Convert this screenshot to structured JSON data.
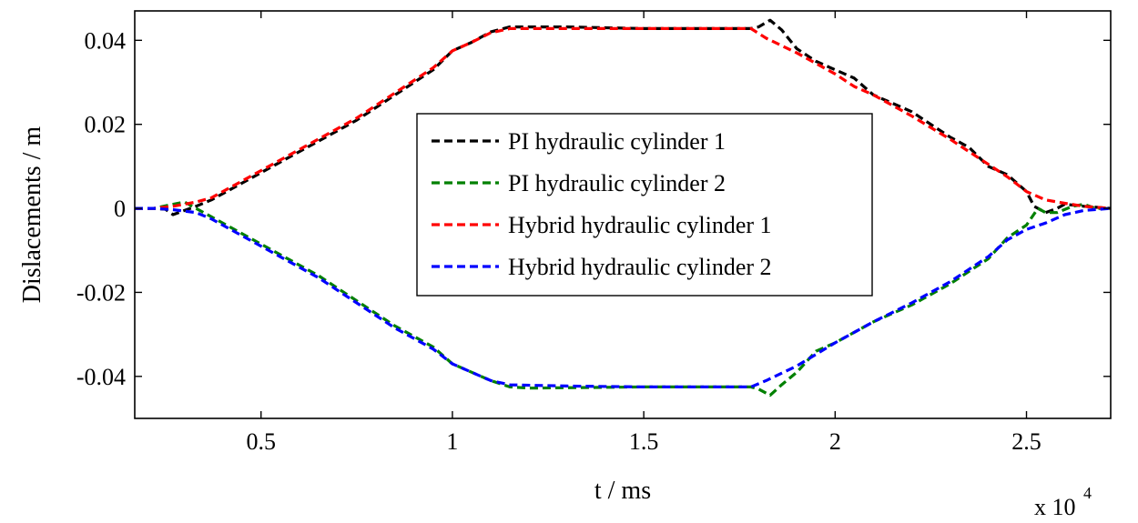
{
  "chart_data": {
    "type": "line",
    "xlabel": "t / ms",
    "ylabel": "Dislacements / m",
    "x_multiplier": {
      "base": "x 10",
      "exponent": "4"
    },
    "xlim": [
      0.17,
      2.72
    ],
    "ylim": [
      -0.05,
      0.047
    ],
    "xticks": [
      {
        "value": 0.5,
        "label": "0.5"
      },
      {
        "value": 1,
        "label": "1"
      },
      {
        "value": 1.5,
        "label": "1.5"
      },
      {
        "value": 2,
        "label": "2"
      },
      {
        "value": 2.5,
        "label": "2.5"
      }
    ],
    "yticks": [
      {
        "value": 0.04,
        "label": "0.04"
      },
      {
        "value": 0.02,
        "label": "0.02"
      },
      {
        "value": 0,
        "label": "0"
      },
      {
        "value": -0.02,
        "label": "-0.02"
      },
      {
        "value": -0.04,
        "label": "-0.04"
      }
    ],
    "grid": false,
    "legend_position": "center",
    "series": [
      {
        "name": "PI hydraulic cylinder 1",
        "color": "#000000",
        "points": [
          [
            0.17,
            0
          ],
          [
            0.22,
            0
          ],
          [
            0.25,
            -0.0002
          ],
          [
            0.27,
            -0.0015
          ],
          [
            0.3,
            -0.0005
          ],
          [
            0.33,
            0.0005
          ],
          [
            0.37,
            0.002
          ],
          [
            0.45,
            0.006
          ],
          [
            0.55,
            0.011
          ],
          [
            0.65,
            0.016
          ],
          [
            0.75,
            0.021
          ],
          [
            0.85,
            0.027
          ],
          [
            0.95,
            0.033
          ],
          [
            1.0,
            0.0375
          ],
          [
            1.05,
            0.0395
          ],
          [
            1.1,
            0.042
          ],
          [
            1.15,
            0.0432
          ],
          [
            1.3,
            0.0432
          ],
          [
            1.5,
            0.0428
          ],
          [
            1.7,
            0.0428
          ],
          [
            1.78,
            0.0428
          ],
          [
            1.8,
            0.0432
          ],
          [
            1.83,
            0.0448
          ],
          [
            1.86,
            0.0425
          ],
          [
            1.9,
            0.038
          ],
          [
            1.95,
            0.035
          ],
          [
            2.0,
            0.033
          ],
          [
            2.05,
            0.031
          ],
          [
            2.1,
            0.027
          ],
          [
            2.2,
            0.023
          ],
          [
            2.3,
            0.017
          ],
          [
            2.35,
            0.0145
          ],
          [
            2.4,
            0.01
          ],
          [
            2.45,
            0.008
          ],
          [
            2.5,
            0.004
          ],
          [
            2.52,
            0.0005
          ],
          [
            2.55,
            -0.001
          ],
          [
            2.58,
            0
          ],
          [
            2.6,
            0.001
          ],
          [
            2.65,
            0.0005
          ],
          [
            2.72,
            0
          ]
        ]
      },
      {
        "name": "PI hydraulic cylinder 2",
        "color": "#008000",
        "points": [
          [
            0.17,
            0
          ],
          [
            0.22,
            0
          ],
          [
            0.26,
            0.0008
          ],
          [
            0.3,
            0.0015
          ],
          [
            0.33,
            0
          ],
          [
            0.37,
            -0.002
          ],
          [
            0.45,
            -0.006
          ],
          [
            0.55,
            -0.011
          ],
          [
            0.65,
            -0.016
          ],
          [
            0.75,
            -0.022
          ],
          [
            0.85,
            -0.028
          ],
          [
            0.95,
            -0.033
          ],
          [
            1.0,
            -0.037
          ],
          [
            1.05,
            -0.039
          ],
          [
            1.1,
            -0.041
          ],
          [
            1.15,
            -0.0425
          ],
          [
            1.2,
            -0.0428
          ],
          [
            1.5,
            -0.0425
          ],
          [
            1.7,
            -0.0425
          ],
          [
            1.78,
            -0.0425
          ],
          [
            1.8,
            -0.043
          ],
          [
            1.83,
            -0.0445
          ],
          [
            1.86,
            -0.042
          ],
          [
            1.9,
            -0.039
          ],
          [
            1.95,
            -0.034
          ],
          [
            2.0,
            -0.032
          ],
          [
            2.1,
            -0.027
          ],
          [
            2.2,
            -0.023
          ],
          [
            2.3,
            -0.018
          ],
          [
            2.4,
            -0.012
          ],
          [
            2.45,
            -0.007
          ],
          [
            2.5,
            -0.004
          ],
          [
            2.53,
            0
          ],
          [
            2.55,
            -0.001
          ],
          [
            2.58,
            -0.001
          ],
          [
            2.62,
            0.0005
          ],
          [
            2.65,
            0.001
          ],
          [
            2.68,
            0
          ],
          [
            2.72,
            0
          ]
        ]
      },
      {
        "name": "Hybrid hydraulic cylinder 1",
        "color": "#ff0000",
        "points": [
          [
            0.17,
            0
          ],
          [
            0.22,
            0
          ],
          [
            0.27,
            0.0005
          ],
          [
            0.33,
            0.0015
          ],
          [
            0.37,
            0.0025
          ],
          [
            0.45,
            0.0065
          ],
          [
            0.55,
            0.0115
          ],
          [
            0.65,
            0.0165
          ],
          [
            0.75,
            0.0215
          ],
          [
            0.85,
            0.0275
          ],
          [
            0.95,
            0.0335
          ],
          [
            1.0,
            0.0375
          ],
          [
            1.05,
            0.0395
          ],
          [
            1.1,
            0.0418
          ],
          [
            1.15,
            0.0428
          ],
          [
            1.3,
            0.0428
          ],
          [
            1.5,
            0.0428
          ],
          [
            1.7,
            0.0428
          ],
          [
            1.78,
            0.0428
          ],
          [
            1.82,
            0.0405
          ],
          [
            1.9,
            0.037
          ],
          [
            2.0,
            0.032
          ],
          [
            2.05,
            0.029
          ],
          [
            2.1,
            0.027
          ],
          [
            2.2,
            0.022
          ],
          [
            2.3,
            0.0165
          ],
          [
            2.4,
            0.0105
          ],
          [
            2.45,
            0.0075
          ],
          [
            2.5,
            0.004
          ],
          [
            2.55,
            0.002
          ],
          [
            2.6,
            0.0012
          ],
          [
            2.65,
            0.0005
          ],
          [
            2.72,
            0
          ]
        ]
      },
      {
        "name": "Hybrid hydraulic cylinder 2",
        "color": "#0000ff",
        "points": [
          [
            0.17,
            0
          ],
          [
            0.22,
            0
          ],
          [
            0.27,
            -0.0003
          ],
          [
            0.33,
            -0.001
          ],
          [
            0.37,
            -0.0025
          ],
          [
            0.45,
            -0.0065
          ],
          [
            0.55,
            -0.0115
          ],
          [
            0.65,
            -0.0165
          ],
          [
            0.75,
            -0.0225
          ],
          [
            0.85,
            -0.0285
          ],
          [
            0.95,
            -0.0335
          ],
          [
            1.0,
            -0.037
          ],
          [
            1.05,
            -0.039
          ],
          [
            1.1,
            -0.041
          ],
          [
            1.15,
            -0.042
          ],
          [
            1.3,
            -0.0423
          ],
          [
            1.5,
            -0.0425
          ],
          [
            1.7,
            -0.0425
          ],
          [
            1.78,
            -0.0425
          ],
          [
            1.82,
            -0.041
          ],
          [
            1.9,
            -0.0375
          ],
          [
            2.0,
            -0.032
          ],
          [
            2.1,
            -0.027
          ],
          [
            2.2,
            -0.0225
          ],
          [
            2.3,
            -0.0175
          ],
          [
            2.4,
            -0.0115
          ],
          [
            2.45,
            -0.0075
          ],
          [
            2.5,
            -0.005
          ],
          [
            2.55,
            -0.0035
          ],
          [
            2.6,
            -0.0015
          ],
          [
            2.65,
            -0.0005
          ],
          [
            2.72,
            0
          ]
        ]
      }
    ]
  }
}
